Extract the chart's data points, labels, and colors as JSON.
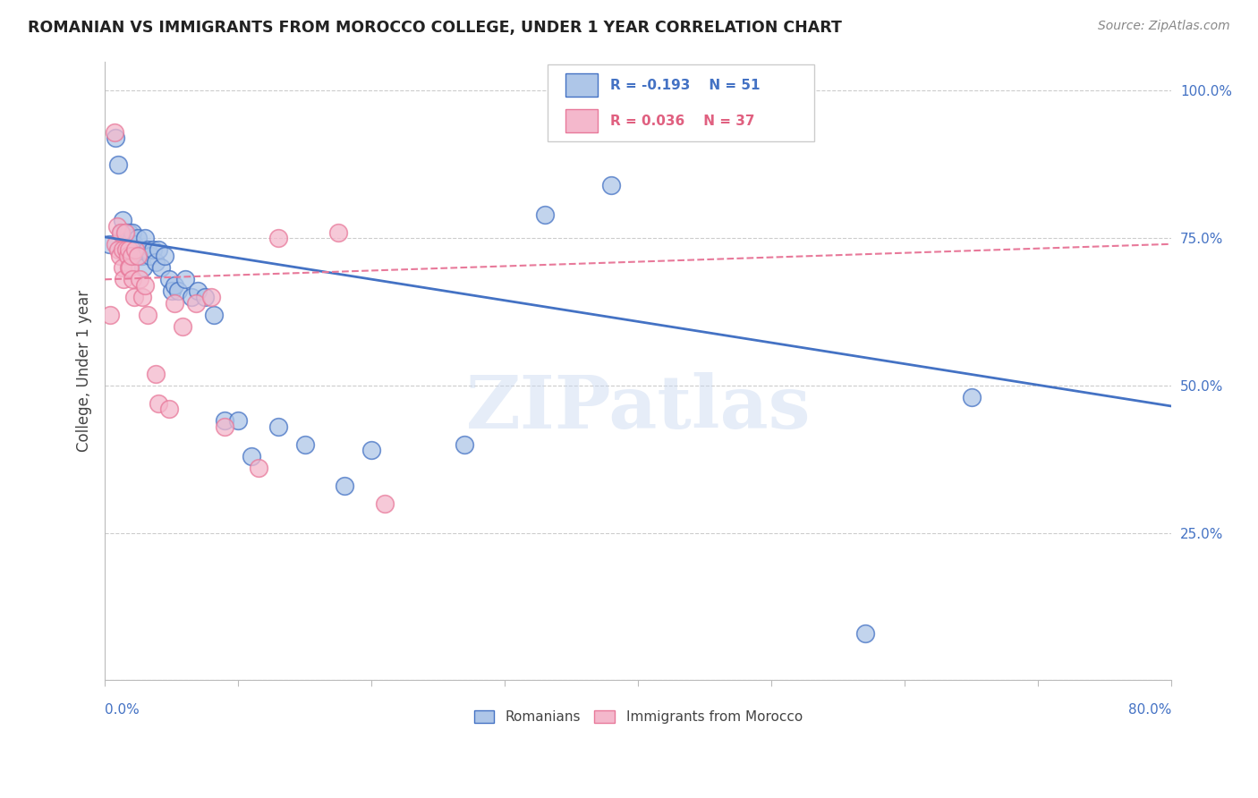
{
  "title": "ROMANIAN VS IMMIGRANTS FROM MOROCCO COLLEGE, UNDER 1 YEAR CORRELATION CHART",
  "source": "Source: ZipAtlas.com",
  "ylabel": "College, Under 1 year",
  "watermark": "ZIPatlas",
  "legend_blue_r": "R = -0.193",
  "legend_blue_n": "N = 51",
  "legend_pink_r": "R = 0.036",
  "legend_pink_n": "N = 37",
  "blue_color": "#aec6e8",
  "pink_color": "#f4b8cc",
  "blue_line_color": "#4472C4",
  "pink_line_color": "#e8799a",
  "background_color": "#ffffff",
  "blue_scatter_x": [
    0.003,
    0.008,
    0.01,
    0.012,
    0.013,
    0.014,
    0.015,
    0.016,
    0.017,
    0.018,
    0.019,
    0.02,
    0.021,
    0.022,
    0.022,
    0.023,
    0.024,
    0.025,
    0.026,
    0.027,
    0.028,
    0.029,
    0.03,
    0.032,
    0.034,
    0.036,
    0.038,
    0.04,
    0.042,
    0.045,
    0.048,
    0.05,
    0.052,
    0.055,
    0.06,
    0.065,
    0.07,
    0.075,
    0.082,
    0.09,
    0.1,
    0.11,
    0.13,
    0.15,
    0.18,
    0.2,
    0.27,
    0.33,
    0.38,
    0.57,
    0.65
  ],
  "blue_scatter_y": [
    0.74,
    0.92,
    0.875,
    0.76,
    0.78,
    0.75,
    0.76,
    0.76,
    0.74,
    0.76,
    0.73,
    0.75,
    0.76,
    0.74,
    0.72,
    0.72,
    0.73,
    0.75,
    0.72,
    0.72,
    0.72,
    0.7,
    0.75,
    0.73,
    0.72,
    0.73,
    0.71,
    0.73,
    0.7,
    0.72,
    0.68,
    0.66,
    0.67,
    0.66,
    0.68,
    0.65,
    0.66,
    0.65,
    0.62,
    0.44,
    0.44,
    0.38,
    0.43,
    0.4,
    0.33,
    0.39,
    0.4,
    0.79,
    0.84,
    0.08,
    0.48
  ],
  "pink_scatter_x": [
    0.004,
    0.007,
    0.008,
    0.009,
    0.01,
    0.011,
    0.012,
    0.013,
    0.013,
    0.014,
    0.015,
    0.016,
    0.017,
    0.018,
    0.018,
    0.019,
    0.02,
    0.021,
    0.022,
    0.023,
    0.025,
    0.026,
    0.028,
    0.03,
    0.032,
    0.038,
    0.04,
    0.048,
    0.052,
    0.058,
    0.068,
    0.08,
    0.09,
    0.115,
    0.13,
    0.175,
    0.21
  ],
  "pink_scatter_y": [
    0.62,
    0.93,
    0.74,
    0.77,
    0.73,
    0.72,
    0.76,
    0.73,
    0.7,
    0.68,
    0.76,
    0.73,
    0.72,
    0.73,
    0.7,
    0.7,
    0.72,
    0.68,
    0.65,
    0.73,
    0.72,
    0.68,
    0.65,
    0.67,
    0.62,
    0.52,
    0.47,
    0.46,
    0.64,
    0.6,
    0.64,
    0.65,
    0.43,
    0.36,
    0.75,
    0.76,
    0.3
  ],
  "xlim": [
    0.0,
    0.8
  ],
  "ylim": [
    0.0,
    1.05
  ],
  "blue_trend_x": [
    0.0,
    0.8
  ],
  "blue_trend_y": [
    0.752,
    0.465
  ],
  "pink_trend_x": [
    0.0,
    0.8
  ],
  "pink_trend_y": [
    0.68,
    0.74
  ]
}
